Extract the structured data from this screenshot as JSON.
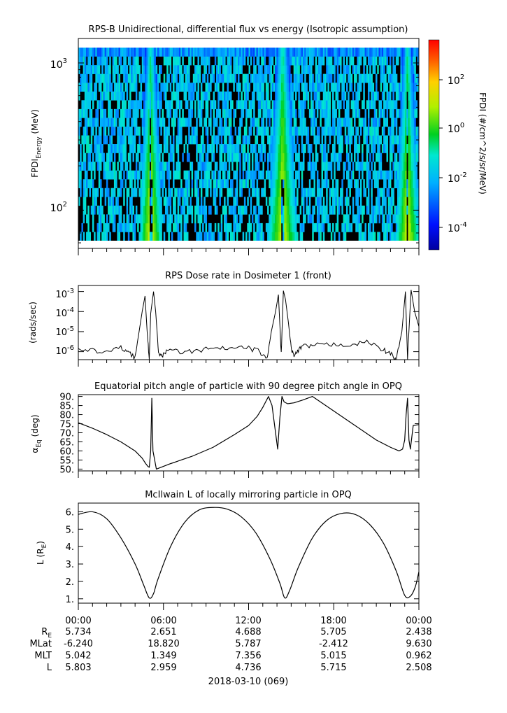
{
  "panels": {
    "spectrogram": {
      "title": "RPS-B  Unidirectional, differential flux vs energy (Isotropic assumption)",
      "ylabel_main": "FPDI",
      "ylabel_sub": "Energy",
      "ylabel_unit": " (MeV)",
      "ytick_labels": [
        "10",
        "10"
      ],
      "ytick_exps": [
        "3",
        "2"
      ],
      "colorbar_label": "FPDI (#/cm^2/s/sr/MeV)",
      "colorbar_tick_labels": [
        "10",
        "10",
        "10",
        "10"
      ],
      "colorbar_tick_exps": [
        "2",
        "0",
        "-2",
        "-4"
      ]
    },
    "dose": {
      "title": "RPS  Dose rate in Dosimeter 1 (front)",
      "ylabel": "(rads/sec)",
      "ytick_labels": [
        "10",
        "10",
        "10",
        "10"
      ],
      "ytick_exps": [
        "-3",
        "-4",
        "-5",
        "-6"
      ]
    },
    "pitch": {
      "title": "Equatorial pitch angle of particle with 90 degree pitch angle in OPQ",
      "ylabel_main": "α",
      "ylabel_sub": "Eq",
      "ylabel_unit": " (deg)",
      "ytick_labels": [
        "90.",
        "85.",
        "80.",
        "75.",
        "70.",
        "65.",
        "60.",
        "55.",
        "50."
      ]
    },
    "lshell": {
      "title": "McIlwain L of locally mirroring particle in OPQ",
      "ylabel_main": "L (R",
      "ylabel_sub": "E",
      "ylabel_end": ")",
      "ytick_labels": [
        "6.",
        "5.",
        "4.",
        "3.",
        "2.",
        "1."
      ]
    }
  },
  "time_axis": {
    "tick_labels": [
      "00:00",
      "06:00",
      "12:00",
      "18:00",
      "00:00"
    ],
    "date_label": "2018-03-10 (069)",
    "rows": [
      {
        "label": "R",
        "label_sub": "E",
        "values": [
          "5.734",
          "2.651",
          "4.688",
          "5.705",
          "2.438"
        ]
      },
      {
        "label": "MLat",
        "label_sub": "",
        "values": [
          "-6.240",
          "18.820",
          "5.787",
          "-2.412",
          "9.630"
        ]
      },
      {
        "label": "MLT",
        "label_sub": "",
        "values": [
          "5.042",
          "1.349",
          "7.356",
          "5.015",
          "0.962"
        ]
      },
      {
        "label": "L",
        "label_sub": "",
        "values": [
          "5.803",
          "2.959",
          "4.736",
          "5.715",
          "2.508"
        ]
      }
    ]
  },
  "chart_data": [
    {
      "type": "heatmap",
      "title": "RPS-B  Unidirectional, differential flux vs energy (Isotropic assumption)",
      "xlabel": "",
      "ylabel": "FPDI Energy (MeV)",
      "x_unit": "hours UT on 2018-03-10",
      "xlim": [
        0,
        24
      ],
      "y_scale": "log",
      "ylim_mev": [
        55,
        1300
      ],
      "colorbar": {
        "label": "FPDI (#/cm^2/s/sr/MeV)",
        "scale": "log",
        "range": [
          1e-05,
          1000.0
        ],
        "colormap": "rainbow (blue to red)"
      },
      "features": [
        {
          "description": "high-flux belt crossing",
          "x_range": [
            4.5,
            6.0
          ],
          "peak_flux": 1
        }
      ],
      "energy_channels_count": 22,
      "background": "black where no counts, blue/cyan sparse at low flux",
      "belt_passes_hours": [
        [
          4.3,
          5.9
        ],
        [
          13.4,
          15.4
        ],
        [
          22.4,
          24.0
        ]
      ]
    },
    {
      "type": "line",
      "title": "RPS  Dose rate in Dosimeter 1 (front)",
      "ylabel": "(rads/sec)",
      "y_scale": "log",
      "ylim": [
        4e-07,
        0.002
      ],
      "x_hours": [
        0,
        1,
        2,
        3,
        3.5,
        4.0,
        4.5,
        4.7,
        4.85,
        5.0,
        5.1,
        5.3,
        5.45,
        5.65,
        5.9,
        6.2,
        7,
        8,
        9,
        10,
        11,
        12,
        12.8,
        13.3,
        13.6,
        13.9,
        14.1,
        14.3,
        14.45,
        14.6,
        14.8,
        15.0,
        15.2,
        15.45,
        15.8,
        16.5,
        17.5,
        18.5,
        19.5,
        20.5,
        21.5,
        22.0,
        22.4,
        22.8,
        23.05,
        23.2,
        23.45,
        23.7,
        24.0
      ],
      "y_values": [
        1.1e-06,
        1.1e-06,
        1e-06,
        1.5e-06,
        1.1e-06,
        5e-07,
        0.0001,
        0.0006,
        1e-05,
        4e-07,
        8e-05,
        0.001,
        0.0001,
        1e-06,
        5e-07,
        1.2e-06,
        1e-06,
        1e-06,
        1.3e-06,
        1.4e-06,
        1.5e-06,
        1.5e-06,
        1e-06,
        4e-07,
        1e-05,
        0.0001,
        0.0007,
        8e-07,
        0.0011,
        0.0004,
        3e-05,
        1.5e-06,
        6e-07,
        1e-06,
        1.8e-06,
        2e-06,
        2.2e-06,
        2.3e-06,
        2.4e-06,
        3e-06,
        1.2e-06,
        8e-07,
        4e-07,
        1e-05,
        0.001,
        5e-07,
        0.0012,
        0.0001,
        1.8e-05
      ]
    },
    {
      "type": "line",
      "title": "Equatorial pitch angle of particle with 90 degree pitch angle in OPQ",
      "ylabel": "αEq (deg)",
      "ylim": [
        49,
        91
      ],
      "x_hours": [
        0,
        1,
        2,
        3,
        4,
        4.5,
        4.75,
        4.9,
        5.0,
        5.1,
        5.18,
        5.26,
        5.5,
        6.5,
        8,
        9.5,
        11,
        12,
        12.6,
        13.0,
        13.4,
        13.65,
        13.9,
        14.05,
        14.2,
        14.35,
        14.5,
        14.75,
        15.2,
        15.8,
        16.5,
        18,
        19.5,
        21,
        22.0,
        22.6,
        22.85,
        23.0,
        23.1,
        23.2,
        23.3,
        23.4,
        23.6,
        24.0
      ],
      "y_values": [
        75.5,
        72.5,
        69,
        65,
        60,
        56,
        53,
        51.5,
        51,
        60,
        89,
        60,
        50,
        53,
        57,
        62,
        69,
        74,
        79,
        84,
        90,
        85,
        70,
        61,
        78,
        90,
        87,
        86,
        86.5,
        88,
        90,
        82,
        74,
        66,
        62,
        60,
        61,
        66,
        80,
        89,
        66,
        61,
        74,
        74.5
      ]
    },
    {
      "type": "line",
      "title": "McIlwain L of locally mirroring particle in OPQ",
      "ylabel": "L (RE)",
      "ylim": [
        0.75,
        6.5
      ],
      "x_hours": [
        0,
        1,
        2,
        3,
        4,
        4.6,
        5.0,
        5.3,
        5.6,
        6.5,
        7.5,
        8.5,
        9.5,
        10.5,
        11.5,
        12.5,
        13.5,
        14.2,
        14.55,
        14.9,
        15.5,
        16.5,
        17.5,
        18.5,
        19.5,
        20.5,
        21.5,
        22.4,
        23.0,
        23.4,
        23.75,
        24.0
      ],
      "y_values": [
        5.85,
        6.0,
        5.6,
        4.5,
        3.0,
        1.8,
        1.05,
        1.3,
        2.1,
        4.0,
        5.4,
        6.1,
        6.25,
        6.15,
        5.7,
        4.8,
        3.3,
        1.9,
        1.05,
        1.5,
        2.8,
        4.5,
        5.5,
        5.9,
        5.85,
        5.3,
        4.2,
        2.6,
        1.2,
        1.15,
        1.7,
        2.55
      ]
    }
  ]
}
